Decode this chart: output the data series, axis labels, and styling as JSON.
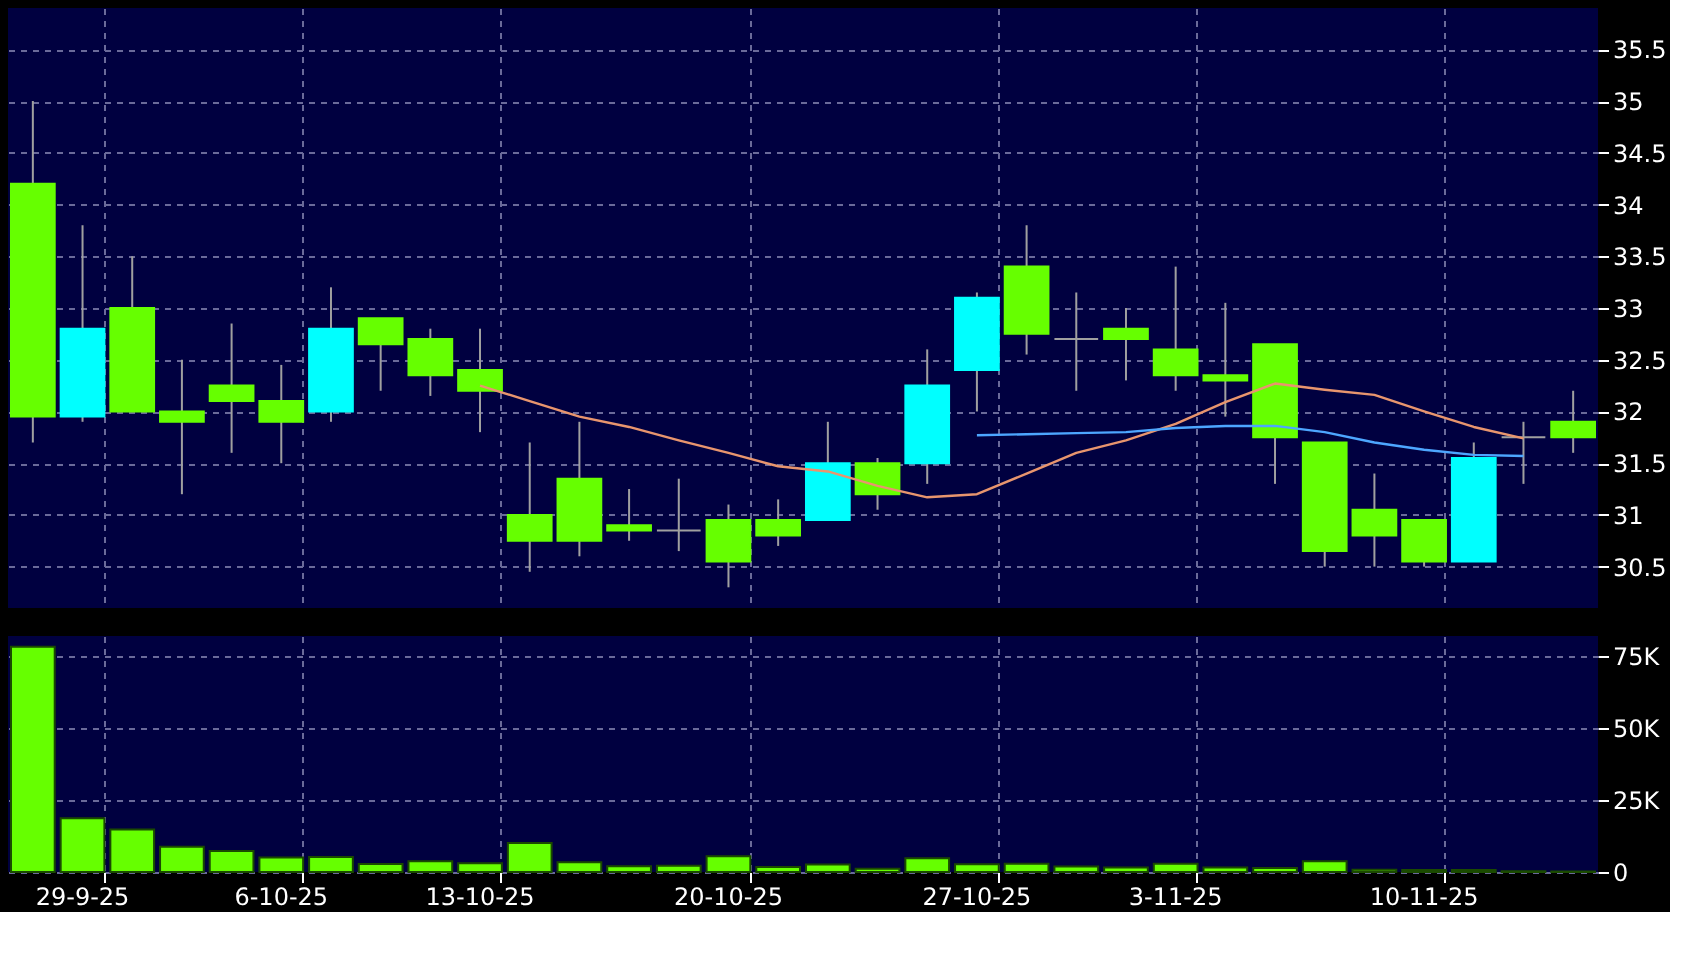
{
  "chart_data": [
    {
      "type": "candlestick",
      "categories": [
        null,
        null,
        null,
        null,
        null,
        null,
        null,
        null,
        null,
        null,
        null,
        null,
        null,
        null,
        null,
        null,
        null,
        null,
        null,
        null,
        null,
        null,
        null,
        null,
        null,
        null,
        null,
        null,
        null,
        null,
        null,
        null
      ],
      "ohlc": [
        [
          34.2,
          35.0,
          31.7,
          31.95
        ],
        [
          31.95,
          33.8,
          31.9,
          32.8
        ],
        [
          33.0,
          33.5,
          32.0,
          32.0
        ],
        [
          32.0,
          32.5,
          31.2,
          31.9
        ],
        [
          32.25,
          32.85,
          31.6,
          32.1
        ],
        [
          32.1,
          32.45,
          31.5,
          31.9
        ],
        [
          32.0,
          33.2,
          31.9,
          32.8
        ],
        [
          32.9,
          32.9,
          32.2,
          32.65
        ],
        [
          32.7,
          32.8,
          32.15,
          32.35
        ],
        [
          32.4,
          32.8,
          31.8,
          32.2
        ],
        [
          31.0,
          31.7,
          30.45,
          30.75
        ],
        [
          31.35,
          31.9,
          30.6,
          30.75
        ],
        [
          30.9,
          31.25,
          30.75,
          30.85
        ],
        [
          30.85,
          31.35,
          30.65,
          30.85
        ],
        [
          30.95,
          31.1,
          30.3,
          30.55
        ],
        [
          30.95,
          31.15,
          30.7,
          30.8
        ],
        [
          30.95,
          31.9,
          30.95,
          31.5
        ],
        [
          31.5,
          31.55,
          31.05,
          31.2
        ],
        [
          31.5,
          32.6,
          31.3,
          32.25
        ],
        [
          32.4,
          33.15,
          32.0,
          33.1
        ],
        [
          33.4,
          33.8,
          32.55,
          32.75
        ],
        [
          32.7,
          33.15,
          32.2,
          32.7
        ],
        [
          32.8,
          33.0,
          32.3,
          32.7
        ],
        [
          32.6,
          33.4,
          32.2,
          32.35
        ],
        [
          32.35,
          33.05,
          31.95,
          32.3
        ],
        [
          32.65,
          32.65,
          31.3,
          31.75
        ],
        [
          31.7,
          31.7,
          30.5,
          30.65
        ],
        [
          31.05,
          31.4,
          30.5,
          30.8
        ],
        [
          30.95,
          30.95,
          30.5,
          30.55
        ],
        [
          30.55,
          31.7,
          30.55,
          31.55
        ],
        [
          31.75,
          31.9,
          31.3,
          31.75
        ],
        [
          31.9,
          32.2,
          31.6,
          31.75
        ]
      ],
      "colors": [
        "#66ff00",
        "#00ffff",
        "#66ff00",
        "#66ff00",
        "#66ff00",
        "#66ff00",
        "#00ffff",
        "#66ff00",
        "#66ff00",
        "#66ff00",
        "#66ff00",
        "#66ff00",
        "#66ff00",
        "#a0a0a0",
        "#66ff00",
        "#66ff00",
        "#00ffff",
        "#66ff00",
        "#00ffff",
        "#00ffff",
        "#66ff00",
        "#a0a0a0",
        "#66ff00",
        "#66ff00",
        "#66ff00",
        "#66ff00",
        "#66ff00",
        "#66ff00",
        "#66ff00",
        "#00ffff",
        "#a0a0a0",
        "#66ff00"
      ],
      "series": [
        {
          "type": "line",
          "color": "#e8956e",
          "values": [
            null,
            null,
            null,
            null,
            null,
            null,
            null,
            null,
            null,
            32.25,
            32.1,
            31.95,
            31.85,
            31.72,
            31.6,
            31.47,
            31.42,
            31.28,
            31.17,
            31.2,
            31.4,
            31.6,
            31.72,
            31.88,
            32.09,
            32.27,
            32.21,
            32.16,
            32.0,
            31.85,
            31.74,
            null
          ]
        },
        {
          "type": "line",
          "color": "#4da6ff",
          "values": [
            null,
            null,
            null,
            null,
            null,
            null,
            null,
            null,
            null,
            null,
            null,
            null,
            null,
            null,
            null,
            null,
            null,
            null,
            null,
            31.77,
            31.78,
            31.79,
            31.8,
            31.84,
            31.86,
            31.86,
            31.8,
            31.7,
            31.63,
            31.58,
            31.57,
            null
          ]
        }
      ],
      "ylim": [
        30.1,
        35.9
      ],
      "yticks": [
        30.5,
        31,
        31.5,
        32,
        32.5,
        33,
        33.5,
        34,
        34.5,
        35,
        35.5
      ],
      "grid": true,
      "tick_labels": "y"
    },
    {
      "type": "bar",
      "categories": [
        null,
        "29-9-25",
        null,
        null,
        null,
        "6-10-25",
        null,
        null,
        null,
        "13-10-25",
        null,
        null,
        null,
        null,
        "20-10-25",
        null,
        null,
        null,
        null,
        "27-10-25",
        null,
        null,
        null,
        "3-11-25",
        null,
        null,
        null,
        null,
        "10-11-25",
        null,
        null,
        null
      ],
      "values": [
        78300,
        18700,
        14800,
        8800,
        7300,
        5000,
        5200,
        2800,
        3700,
        3000,
        10100,
        3400,
        2000,
        2200,
        5500,
        1700,
        2600,
        1100,
        4800,
        2700,
        2900,
        1900,
        1600,
        2900,
        1600,
        1400,
        3700,
        800,
        700,
        700,
        300,
        200
      ],
      "color": "#66ff00",
      "ylim": [
        0,
        82000
      ],
      "yticks": [
        0,
        {
          "value": 25000,
          "label": "25K"
        },
        {
          "value": 50000,
          "label": "50K"
        },
        {
          "value": 75000,
          "label": "75K"
        }
      ],
      "grid": true
    }
  ]
}
